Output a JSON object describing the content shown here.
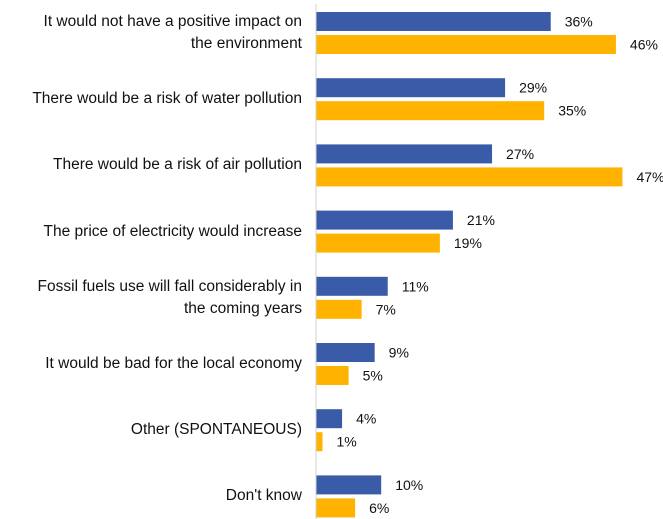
{
  "chart_data": {
    "type": "bar",
    "orientation": "horizontal",
    "categories": [
      [
        "It would not have a positive impact on",
        "the environment"
      ],
      [
        "There would be a risk of water pollution"
      ],
      [
        "There would be a risk of air pollution"
      ],
      [
        "The price of electricity would increase"
      ],
      [
        "Fossil fuels use will fall considerably in",
        "the coming years"
      ],
      [
        "It would be bad for the local economy"
      ],
      [
        "Other (SPONTANEOUS)"
      ],
      [
        "Don't know"
      ]
    ],
    "series": [
      {
        "color": "#3A5BA8",
        "values": [
          36,
          29,
          27,
          21,
          11,
          9,
          4,
          10
        ]
      },
      {
        "color": "#FFB300",
        "values": [
          46,
          35,
          47,
          19,
          7,
          5,
          1,
          6
        ]
      }
    ],
    "value_suffix": "%",
    "xlim": [
      0,
      50
    ],
    "grid": false,
    "axis_line": "left"
  }
}
